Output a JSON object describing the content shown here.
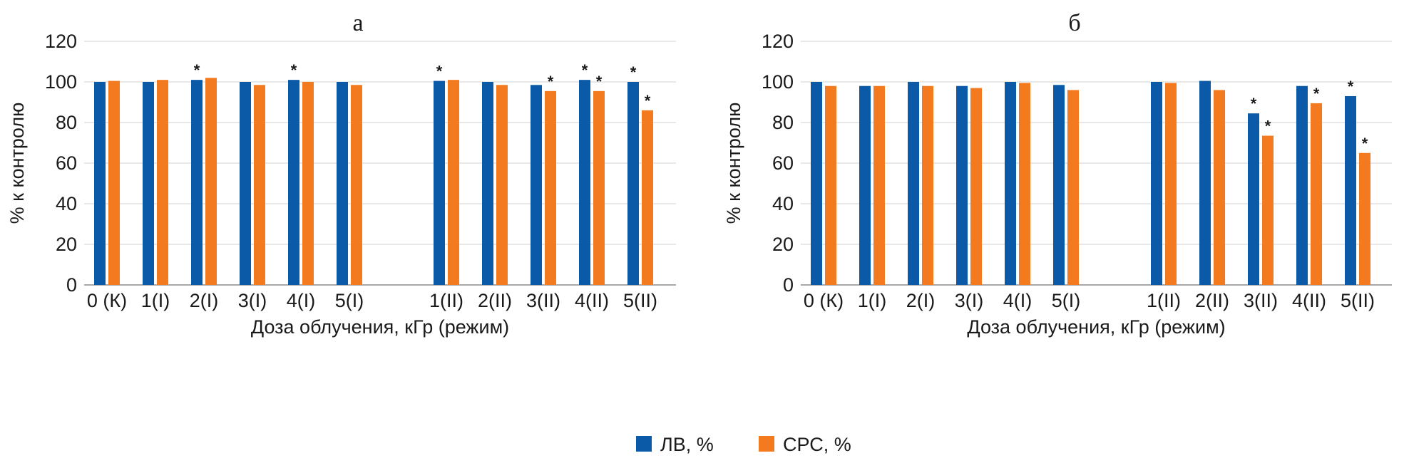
{
  "chart_data": [
    {
      "type": "bar",
      "title": "а",
      "xlabel": "Доза облучения, кГр (режим)",
      "ylabel": "% к контролю",
      "ylim": [
        0,
        120
      ],
      "yticks": [
        "0",
        "20",
        "40",
        "60",
        "80",
        "100",
        "120"
      ],
      "grid": true,
      "categories": [
        "0 (К)",
        "1(I)",
        "2(I)",
        "3(I)",
        "4(I)",
        "5(I)",
        "1(II)",
        "2(II)",
        "3(II)",
        "4(II)",
        "5(II)"
      ],
      "series": [
        {
          "name": "ЛВ, %",
          "color": "#0a5aa8",
          "values": [
            100,
            100,
            101,
            100,
            101,
            100,
            100.5,
            100,
            98.5,
            101,
            100
          ],
          "significant": [
            false,
            false,
            true,
            false,
            true,
            false,
            true,
            false,
            false,
            true,
            true
          ]
        },
        {
          "name": "СРС, %",
          "color": "#f47a20",
          "values": [
            100.5,
            101,
            102,
            98.5,
            100,
            98.5,
            101,
            98.5,
            95.5,
            95.5,
            86
          ],
          "significant": [
            false,
            false,
            false,
            false,
            false,
            false,
            false,
            false,
            true,
            true,
            true
          ]
        }
      ]
    },
    {
      "type": "bar",
      "title": "б",
      "xlabel": "Доза облучения, кГр (режим)",
      "ylabel": "% к контролю",
      "ylim": [
        0,
        120
      ],
      "yticks": [
        "0",
        "20",
        "40",
        "60",
        "80",
        "100",
        "120"
      ],
      "grid": true,
      "categories": [
        "0 (К)",
        "1(I)",
        "2(I)",
        "3(I)",
        "4(I)",
        "5(I)",
        "1(II)",
        "2(II)",
        "3(II)",
        "4(II)",
        "5(II)"
      ],
      "series": [
        {
          "name": "ЛВ, %",
          "color": "#0a5aa8",
          "values": [
            100,
            98,
            100,
            98,
            100,
            98.5,
            100,
            100.5,
            84.5,
            98,
            93
          ],
          "significant": [
            false,
            false,
            false,
            false,
            false,
            false,
            false,
            false,
            true,
            false,
            true
          ]
        },
        {
          "name": "СРС, %",
          "color": "#f47a20",
          "values": [
            98,
            98,
            98,
            97,
            99.5,
            96,
            99.5,
            96,
            73.5,
            89.5,
            65
          ],
          "significant": [
            false,
            false,
            false,
            false,
            false,
            false,
            false,
            false,
            true,
            true,
            true
          ]
        }
      ]
    }
  ],
  "legend": {
    "position": "bottom-center",
    "items": [
      {
        "label": "ЛВ, %",
        "color": "#0a5aa8"
      },
      {
        "label": "СРС, %",
        "color": "#f47a20"
      }
    ]
  },
  "significance_marker": "*"
}
